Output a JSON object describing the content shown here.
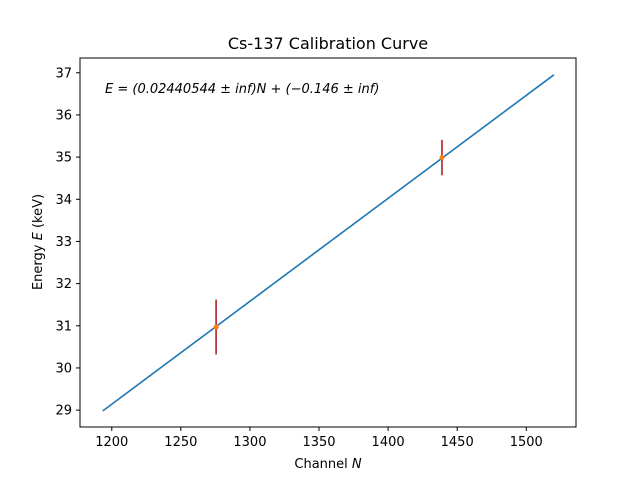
{
  "chart_data": {
    "type": "line",
    "title": "Cs-137 Calibration Curve",
    "xlabel_text": "Channel ",
    "xlabel_var": "N",
    "ylabel_text": "Energy ",
    "ylabel_var": "E",
    "ylabel_unit": " (keV)",
    "annotation": "E = (0.02440544 ± inf)N + (−0.146 ± inf)",
    "xlim": [
      1177,
      1536
    ],
    "ylim": [
      28.6,
      37.35
    ],
    "xticks": [
      1200,
      1250,
      1300,
      1350,
      1400,
      1450,
      1500
    ],
    "yticks": [
      29,
      30,
      31,
      32,
      33,
      34,
      35,
      36,
      37
    ],
    "grid": false,
    "series": [
      {
        "kind": "fit-line",
        "x": [
          1193.5,
          1520
        ],
        "y": [
          28.9827,
          36.9513
        ],
        "color": "#1f77b4"
      },
      {
        "kind": "data-points",
        "x": [
          1275.5,
          1439
        ],
        "y": [
          30.97,
          34.99
        ],
        "yerr": [
          0.65,
          0.42
        ],
        "color": "#ff7f0e",
        "errcolor": "#b22222"
      }
    ]
  }
}
